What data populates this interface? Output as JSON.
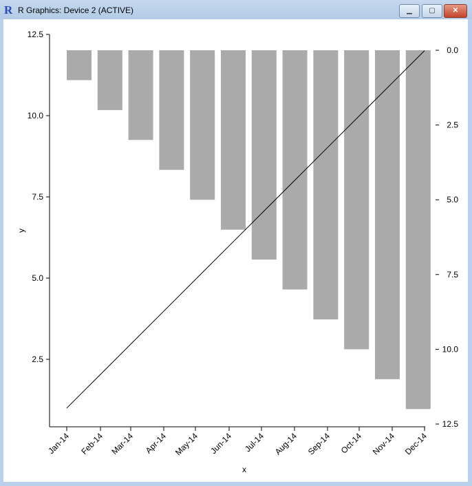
{
  "window": {
    "title": "R Graphics: Device 2 (ACTIVE)",
    "minimize": "▁",
    "maximize": "▢",
    "close": "✕"
  },
  "chart_data": {
    "type": "bar+line",
    "xlabel": "x",
    "ylabel": "y",
    "categories": [
      "Jan-14",
      "Feb-14",
      "Mar-14",
      "Apr-14",
      "May-14",
      "Jun-14",
      "Jul-14",
      "Aug-14",
      "Sep-14",
      "Oct-14",
      "Nov-14",
      "Dec-14"
    ],
    "line_values": [
      1,
      2,
      3,
      4,
      5,
      6,
      7,
      8,
      9,
      10,
      11,
      12
    ],
    "bar_values": [
      1,
      2,
      3,
      4,
      5,
      6,
      7,
      8,
      9,
      10,
      11,
      12
    ],
    "left_axis": {
      "range": [
        1,
        12.5
      ],
      "ticks": [
        "2.5",
        "5.0",
        "7.5",
        "10.0",
        "12.5"
      ]
    },
    "right_axis": {
      "range": [
        0,
        12.5
      ],
      "reversed": true,
      "ticks": [
        "0.0",
        "2.5",
        "5.0",
        "7.5",
        "10.0",
        "12.5"
      ]
    },
    "bar_color": "#aaaaaa",
    "line_color": "#000000"
  }
}
